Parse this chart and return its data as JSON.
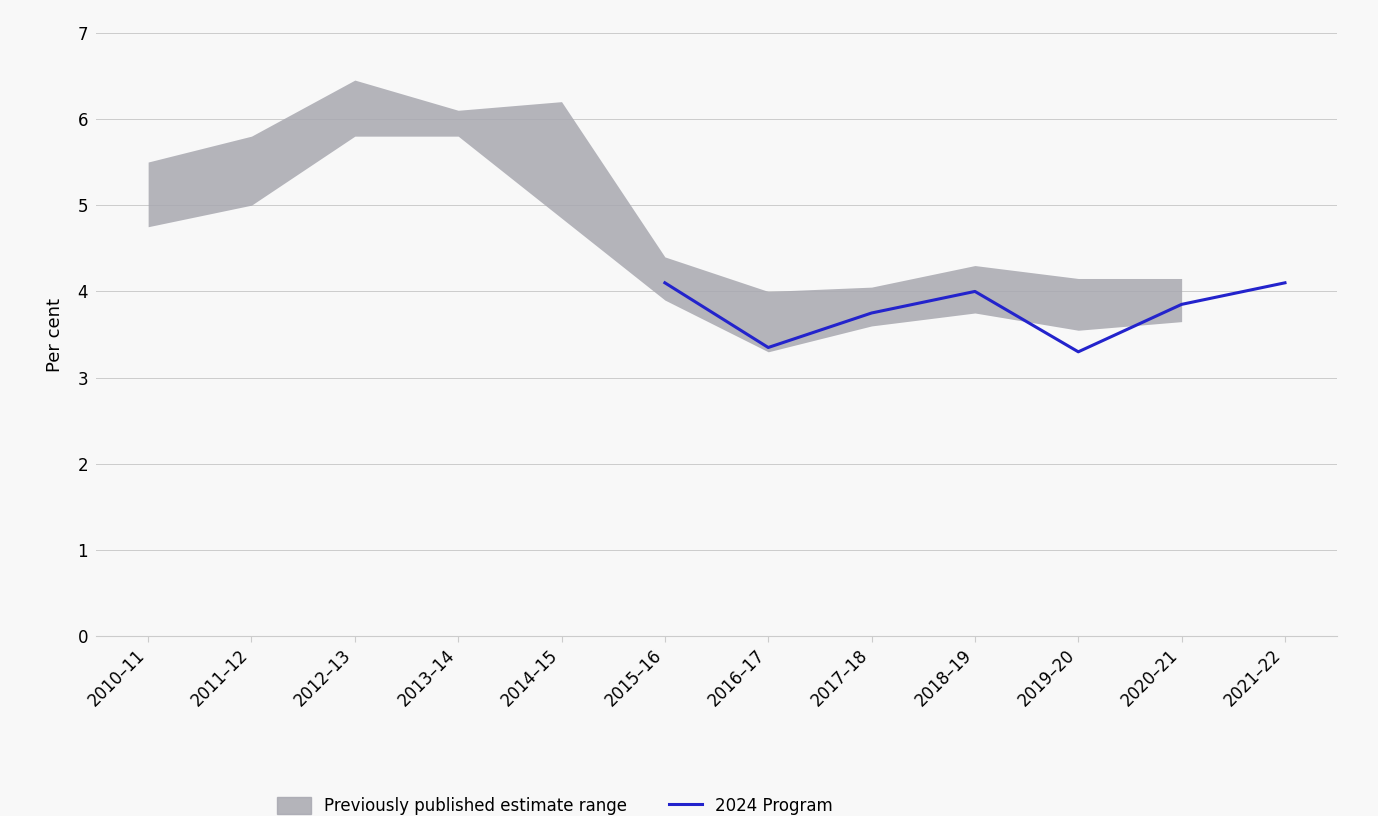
{
  "years": [
    "2010–11",
    "2011–12",
    "2012–13",
    "2013–14",
    "2014–15",
    "2015–16",
    "2016–17",
    "2017–18",
    "2018–19",
    "2019–20",
    "2020–21",
    "2021–22"
  ],
  "range_upper": [
    5.5,
    5.8,
    6.45,
    6.1,
    6.2,
    4.4,
    4.0,
    4.05,
    4.3,
    4.15,
    4.15,
    null
  ],
  "range_lower": [
    4.75,
    5.0,
    5.8,
    5.8,
    4.85,
    3.9,
    3.3,
    3.6,
    3.75,
    3.55,
    3.65,
    null
  ],
  "program_2024": [
    null,
    null,
    null,
    null,
    null,
    4.1,
    3.35,
    3.75,
    4.0,
    3.3,
    3.85,
    4.1
  ],
  "ylabel": "Per cent",
  "ylim": [
    0,
    7
  ],
  "yticks": [
    0,
    1,
    2,
    3,
    4,
    5,
    6,
    7
  ],
  "range_color": "#a8a8b0",
  "range_alpha": 0.85,
  "line_color": "#2323cc",
  "line_width": 2.2,
  "background_color": "#f8f8f8",
  "grid_color": "#cccccc",
  "legend_range_label": "Previously published estimate range",
  "legend_line_label": "2024 Program",
  "tick_label_fontsize": 12,
  "ylabel_fontsize": 13,
  "legend_fontsize": 12,
  "spine_color": "#cccccc"
}
